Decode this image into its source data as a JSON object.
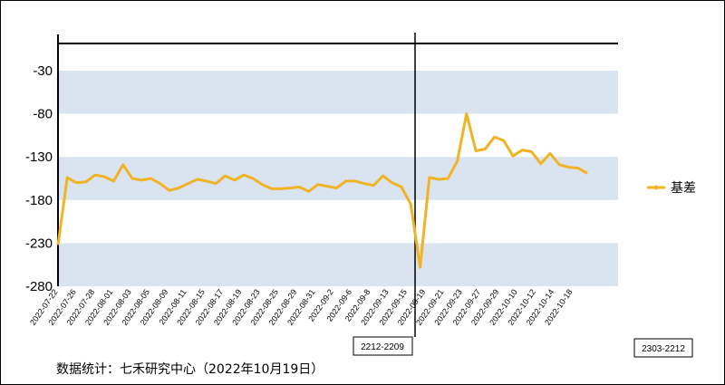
{
  "chart_data": {
    "type": "line",
    "title": "",
    "xlabel": "",
    "ylabel": "",
    "ylim": [
      -280,
      20
    ],
    "yticks": [
      -30,
      -80,
      -130,
      -180,
      -230,
      -280
    ],
    "x_tick_labels": [
      "2022-07-22",
      "2022-07-26",
      "2022-07-28",
      "2022-08-01",
      "2022-08-03",
      "2022-08-05",
      "2022-08-09",
      "2022-08-11",
      "2022-08-15",
      "2022-08-17",
      "2022-08-19",
      "2022-08-23",
      "2022-08-25",
      "2022-08-29",
      "2022-08-31",
      "2022-09-2",
      "2022-09-6",
      "2022-09-8",
      "2022-09-13",
      "2022-09-15",
      "2022-09-19",
      "2022-09-21",
      "2022-09-23",
      "2022-09-27",
      "2022-09-29",
      "2022-10-10",
      "2022-10-12",
      "2022-10-14",
      "2022-10-18"
    ],
    "series": [
      {
        "name": "基差",
        "color": "#f0b323",
        "values": [
          -232,
          -154,
          -160,
          -159,
          -151,
          -153,
          -158,
          -139,
          -155,
          -157,
          -155,
          -161,
          -169,
          -166,
          -161,
          -156,
          -158,
          -161,
          -152,
          -157,
          -151,
          -155,
          -162,
          -167,
          -167,
          -166,
          -165,
          -170,
          -162,
          -164,
          -166,
          -158,
          -158,
          -161,
          -163,
          -152,
          -160,
          -165,
          -185,
          -258,
          -154,
          -156,
          -155,
          -135,
          -80,
          -123,
          -121,
          -107,
          -111,
          -129,
          -122,
          -124,
          -138,
          -126,
          -139,
          -142,
          -143,
          -149
        ]
      }
    ],
    "legend_position": "right",
    "grid": "alternating horizontal bands",
    "band_color": "#d9e4f0",
    "annotations": [
      {
        "text": "2212-2209"
      },
      {
        "text": "2303-2212"
      }
    ]
  },
  "source_note": "数据统计：七禾研究中心（2022年10月19日）"
}
